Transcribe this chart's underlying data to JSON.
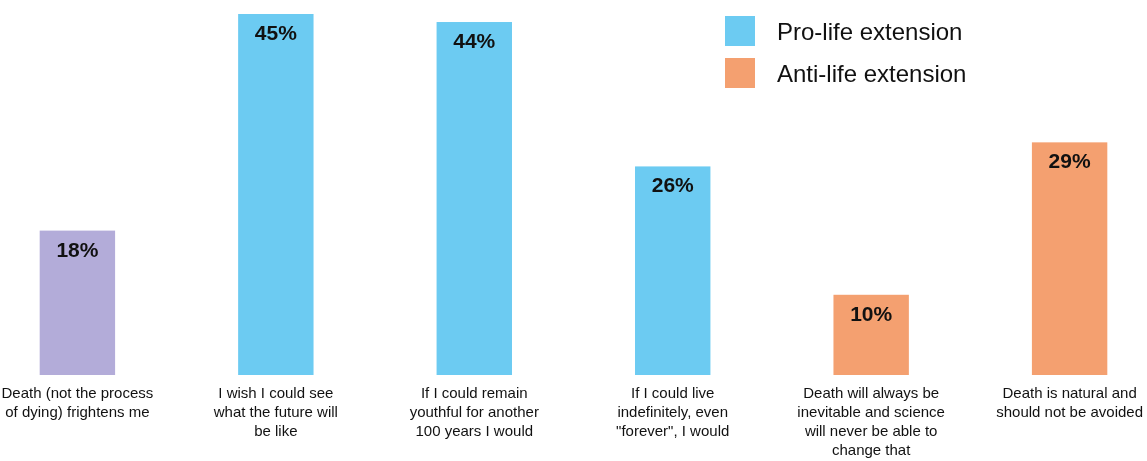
{
  "chart_data": {
    "type": "bar",
    "stacked": true,
    "legend": "top right",
    "categories": [
      "Death (not the process of dying) frightens me",
      "I wish I could see what the future will be like",
      "If I could remain youthful for another 100 years I would",
      "If I could live indefinitely, even \"forever\", I would",
      "Death will always be inevitable and science will never be able to change that",
      "Death is natural and should not be avoided"
    ],
    "series": [
      {
        "color": "#b3acd9",
        "values": [
          18,
          null,
          null,
          null,
          null,
          null
        ],
        "value_labels": [
          "18%",
          null,
          null,
          null,
          null,
          null
        ]
      },
      {
        "name": "Pro-life extension",
        "color": "#6ccbf2",
        "values": [
          null,
          45,
          44,
          26,
          null,
          null
        ],
        "value_labels": [
          null,
          "45%",
          "44%",
          "26%",
          null,
          null
        ]
      },
      {
        "name": "Anti-life extension",
        "color": "#f4a070",
        "values": [
          null,
          null,
          null,
          null,
          10,
          29
        ],
        "value_labels": [
          null,
          null,
          null,
          null,
          "10%",
          "29%"
        ]
      }
    ]
  }
}
